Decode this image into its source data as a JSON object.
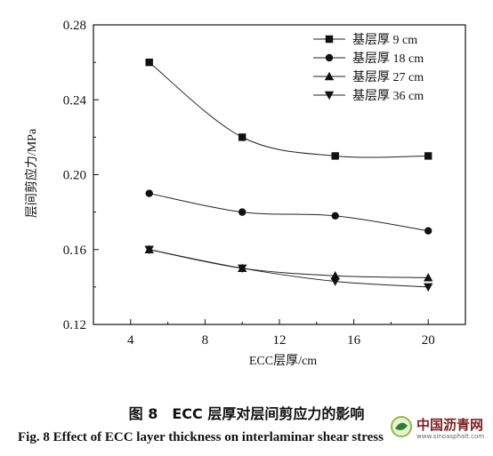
{
  "chart_data": {
    "type": "line",
    "xlabel": "ECC层厚/cm",
    "ylabel": "层间剪应力/MPa",
    "xlim": [
      2,
      22
    ],
    "ylim": [
      0.12,
      0.28
    ],
    "xticks": [
      4,
      8,
      12,
      16,
      20
    ],
    "yticks": [
      0.12,
      0.16,
      0.2,
      0.24,
      0.28
    ],
    "ytick_labels": [
      "0.12",
      "0.16",
      "0.20",
      "0.24",
      "0.28"
    ],
    "x": [
      5,
      10,
      15,
      20
    ],
    "legend_position": "top-right",
    "grid": false,
    "series": [
      {
        "name": "基层厚 9 cm",
        "marker": "square",
        "values": [
          0.26,
          0.22,
          0.21,
          0.21
        ]
      },
      {
        "name": "基层厚 18 cm",
        "marker": "circle",
        "values": [
          0.19,
          0.18,
          0.178,
          0.17
        ]
      },
      {
        "name": "基层厚 27 cm",
        "marker": "triangle-up",
        "values": [
          0.16,
          0.15,
          0.146,
          0.145
        ]
      },
      {
        "name": "基层厚 36 cm",
        "marker": "triangle-down",
        "values": [
          0.16,
          0.15,
          0.143,
          0.14
        ]
      }
    ]
  },
  "caption": {
    "chinese": "图 8　ECC 层厚对层间剪应力的影响",
    "english": "Fig. 8    Effect of ECC layer thickness on interlaminar shear stress"
  },
  "watermark": {
    "text": "中国沥青网",
    "url": "www.sinoasphalt.com"
  }
}
